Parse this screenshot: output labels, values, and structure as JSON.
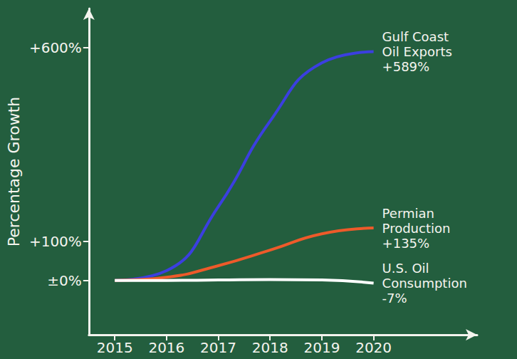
{
  "chart_data": {
    "type": "line",
    "y_label": "Percentage Growth",
    "x": [
      2015,
      2016,
      2017,
      2018,
      2019,
      2020
    ],
    "xlim": [
      2014.5,
      2022
    ],
    "xticks": [
      2015,
      2016,
      2017,
      2018,
      2019,
      2020
    ],
    "ylim": [
      -140,
      700
    ],
    "yticks": [
      {
        "value": 0,
        "label": "±0%"
      },
      {
        "value": 100,
        "label": "+100%"
      },
      {
        "value": 600,
        "label": "+600%"
      }
    ],
    "grid": false,
    "series": [
      {
        "name": "Gulf Coast Oil Exports",
        "color": "#3b3fe0",
        "values": [
          0,
          25,
          190,
          410,
          560,
          589
        ],
        "value_labels": [
          null,
          null,
          null,
          null,
          null,
          "+589%"
        ]
      },
      {
        "name": "Permian Production",
        "color": "#ee5a2a",
        "values": [
          0,
          8,
          38,
          78,
          120,
          135
        ],
        "value_labels": [
          null,
          null,
          null,
          null,
          null,
          "+135%"
        ]
      },
      {
        "name": "U.S. Oil Consumption",
        "color": "#ffffff",
        "values": [
          0,
          0,
          1,
          2,
          1,
          -7
        ],
        "value_labels": [
          null,
          null,
          null,
          null,
          null,
          "-7%"
        ]
      }
    ]
  }
}
